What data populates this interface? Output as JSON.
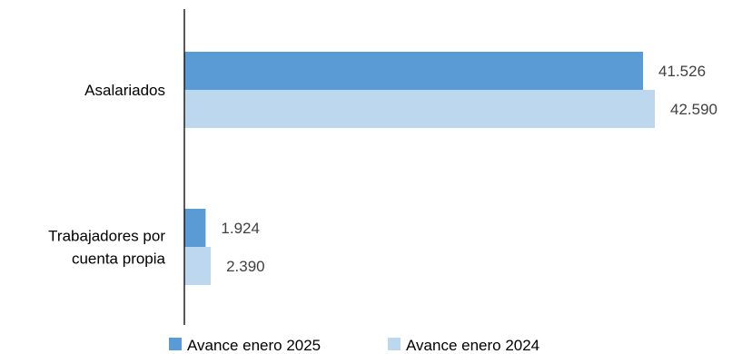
{
  "chart_data": {
    "type": "bar",
    "orientation": "horizontal",
    "categories": [
      [
        "Asalariados"
      ],
      [
        "Trabajadores por",
        "cuenta propia"
      ]
    ],
    "series": [
      {
        "name": "Avance enero 2025",
        "values": [
          41526,
          1924
        ],
        "labels": [
          "41.526",
          "1.924"
        ],
        "color": "#5b9bd5"
      },
      {
        "name": "Avance enero 2024",
        "values": [
          42590,
          2390
        ],
        "labels": [
          "42.590",
          "2.390"
        ],
        "color": "#bdd7ee"
      }
    ],
    "xlim": [
      0,
      42590
    ],
    "grid": false,
    "legend_position": "bottom"
  }
}
